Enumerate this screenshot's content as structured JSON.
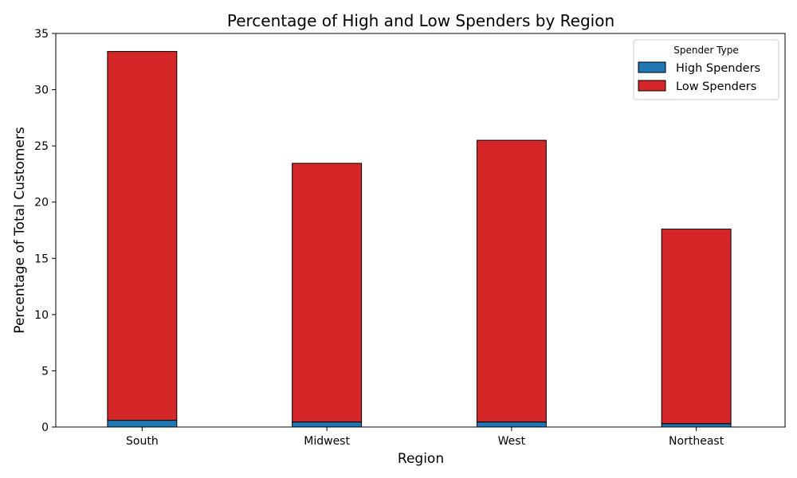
{
  "chart_data": {
    "type": "bar",
    "stacked": true,
    "title": "Percentage of High and Low Spenders by Region",
    "xlabel": "Region",
    "ylabel": "Percentage of Total Customers",
    "categories": [
      "South",
      "Midwest",
      "West",
      "Northeast"
    ],
    "series": [
      {
        "name": "High Spenders",
        "color": "#1f77b4",
        "values": [
          0.6,
          0.45,
          0.45,
          0.3
        ]
      },
      {
        "name": "Low Spenders",
        "color": "#d62728",
        "values": [
          32.8,
          23.0,
          25.05,
          17.3
        ]
      }
    ],
    "ylim": [
      0,
      35
    ],
    "yticks": [
      "0",
      "5",
      "10",
      "15",
      "20",
      "25",
      "30",
      "35"
    ],
    "grid": false,
    "legend": {
      "title": "Spender Type",
      "placement": "top-right"
    }
  }
}
